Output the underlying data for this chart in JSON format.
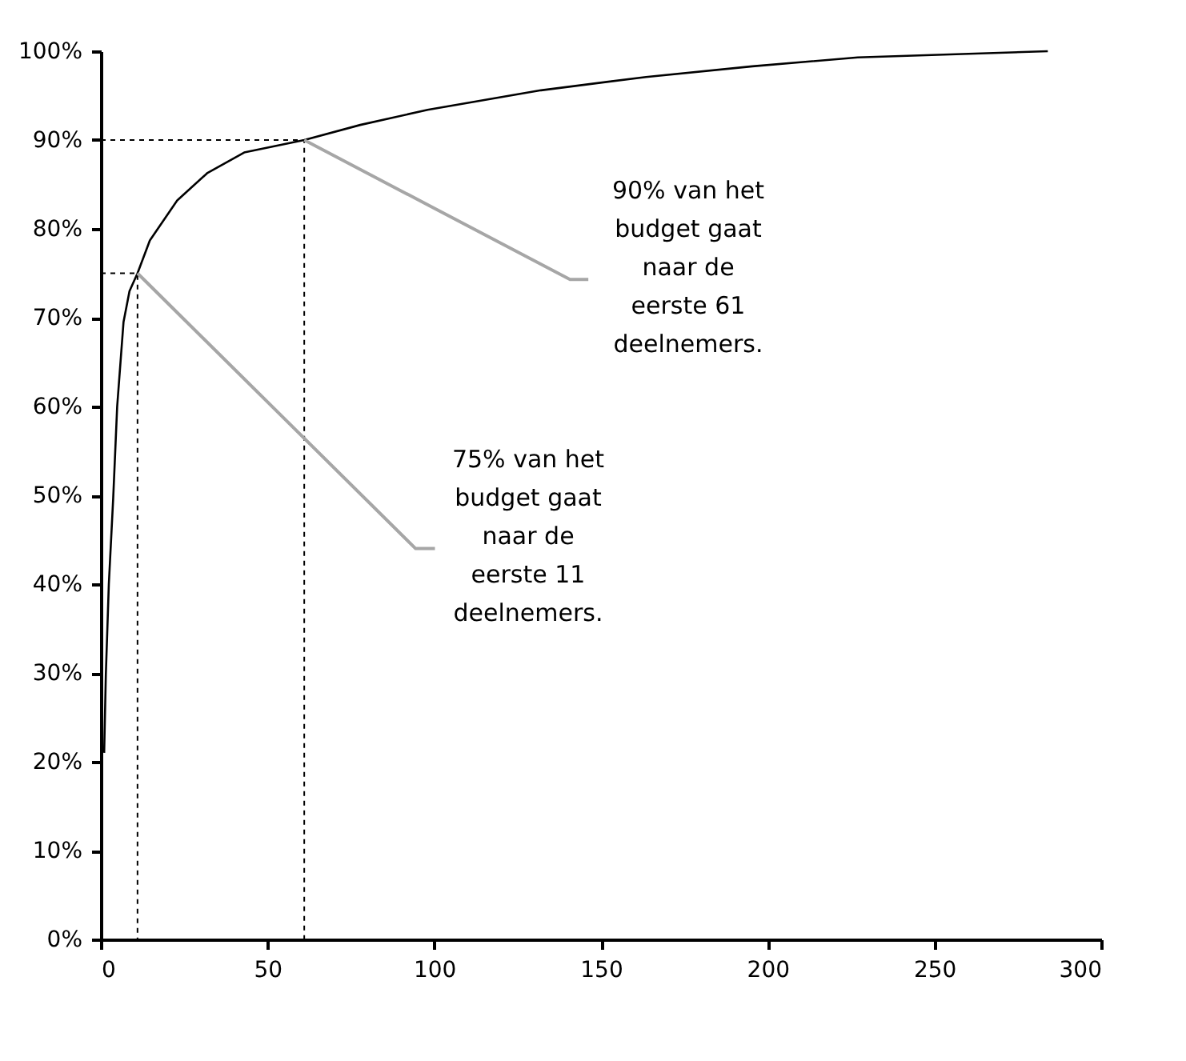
{
  "chart_data": {
    "type": "line",
    "x": [
      1,
      1.5,
      2.4,
      3.7,
      4.9,
      6.8,
      8.6,
      11,
      14.7,
      22.9,
      32,
      43,
      61,
      77.8,
      98,
      115,
      132,
      163.5,
      195.4,
      227,
      284
    ],
    "series": [
      {
        "color": "#000000",
        "values": [
          21,
          29.8,
          40,
          49.6,
          60,
          69.5,
          73,
          75,
          78.7,
          83.2,
          86.3,
          88.6,
          90,
          91.7,
          93.4,
          94.5,
          95.6,
          97.1,
          98.3,
          99.3,
          100
        ]
      },
      {
        "color": "#000000",
        "line_style": "dashed",
        "x": [
          0,
          11,
          11
        ],
        "values": [
          75,
          75,
          0
        ]
      },
      {
        "color": "#000000",
        "line_style": "dashed",
        "x": [
          0,
          61,
          61
        ],
        "values": [
          90,
          90,
          0
        ]
      },
      {
        "color": "#a6a6a6",
        "x": [
          11,
          94.4,
          100.2
        ],
        "values": [
          75,
          44,
          44
        ]
      },
      {
        "color": "#a6a6a6",
        "x": [
          61,
          140.7,
          146.2
        ],
        "values": [
          90,
          74.3,
          74.3
        ]
      }
    ],
    "xlim": [
      0,
      300
    ],
    "xticks": [
      0,
      50,
      100,
      150,
      200,
      250,
      300
    ],
    "ylim": [
      0,
      100
    ],
    "yticks": [
      {
        "value": 0,
        "label": "0%"
      },
      {
        "value": 10,
        "label": "10%"
      },
      {
        "value": 20,
        "label": "20%"
      },
      {
        "value": 30,
        "label": "30%"
      },
      {
        "value": 40,
        "label": "40%"
      },
      {
        "value": 50,
        "label": "50%"
      },
      {
        "value": 60,
        "label": "60%"
      },
      {
        "value": 70,
        "label": "70%"
      },
      {
        "value": 80,
        "label": "80%"
      },
      {
        "value": 90,
        "label": "90%"
      },
      {
        "value": 100,
        "label": "100%"
      }
    ],
    "annotations": [
      "75% van het budget gaat naar de eerste 11 deelnemers.",
      "90% van het budget gaat naar de eerste 61 deelnemers."
    ],
    "grid": false,
    "marker": "none",
    "line_style": "solid"
  }
}
